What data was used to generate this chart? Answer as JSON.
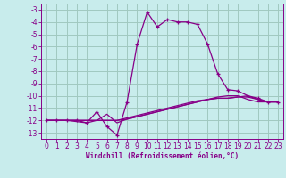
{
  "xlabel": "Windchill (Refroidissement éolien,°C)",
  "background_color": "#c8ecec",
  "grid_color": "#a0c8c0",
  "line_color": "#880088",
  "spine_color": "#880088",
  "xlim": [
    -0.5,
    23.5
  ],
  "ylim": [
    -13.5,
    -2.5
  ],
  "yticks": [
    -13,
    -12,
    -11,
    -10,
    -9,
    -8,
    -7,
    -6,
    -5,
    -4,
    -3
  ],
  "xticks": [
    0,
    1,
    2,
    3,
    4,
    5,
    6,
    7,
    8,
    9,
    10,
    11,
    12,
    13,
    14,
    15,
    16,
    17,
    18,
    19,
    20,
    21,
    22,
    23
  ],
  "series1_x": [
    0,
    1,
    2,
    3,
    4,
    5,
    6,
    7,
    8,
    9,
    10,
    11,
    12,
    13,
    14,
    15,
    16,
    17,
    18,
    19,
    20,
    21,
    22,
    23
  ],
  "series1_y": [
    -12.0,
    -12.0,
    -12.0,
    -12.0,
    -12.2,
    -11.3,
    -12.5,
    -13.2,
    -10.5,
    -5.8,
    -3.2,
    -4.4,
    -3.8,
    -4.0,
    -4.0,
    -4.2,
    -5.8,
    -8.2,
    -9.5,
    -9.6,
    -10.0,
    -10.2,
    -10.5,
    -10.5
  ],
  "series2_x": [
    0,
    1,
    2,
    3,
    4,
    5,
    6,
    7,
    8,
    9,
    10,
    11,
    12,
    13,
    14,
    15,
    16,
    17,
    18,
    19,
    20,
    21,
    22,
    23
  ],
  "series2_y": [
    -12.0,
    -12.0,
    -12.0,
    -12.0,
    -12.0,
    -12.0,
    -12.0,
    -12.0,
    -11.8,
    -11.6,
    -11.4,
    -11.2,
    -11.0,
    -10.8,
    -10.6,
    -10.4,
    -10.3,
    -10.2,
    -10.2,
    -10.1,
    -10.1,
    -10.3,
    -10.5,
    -10.5
  ],
  "series3_x": [
    0,
    1,
    2,
    3,
    4,
    5,
    6,
    7,
    8,
    9,
    10,
    11,
    12,
    13,
    14,
    15,
    16,
    17,
    18,
    19,
    20,
    21,
    22,
    23
  ],
  "series3_y": [
    -12.0,
    -12.0,
    -12.0,
    -12.0,
    -12.0,
    -12.0,
    -12.0,
    -12.0,
    -11.9,
    -11.7,
    -11.5,
    -11.3,
    -11.1,
    -10.9,
    -10.7,
    -10.5,
    -10.3,
    -10.2,
    -10.2,
    -10.1,
    -10.0,
    -10.3,
    -10.5,
    -10.5
  ],
  "series4_x": [
    0,
    1,
    2,
    3,
    4,
    5,
    6,
    7,
    8,
    9,
    10,
    11,
    12,
    13,
    14,
    15,
    16,
    17,
    18,
    19,
    20,
    21,
    22,
    23
  ],
  "series4_y": [
    -12.0,
    -12.0,
    -12.0,
    -12.1,
    -12.2,
    -12.0,
    -11.5,
    -12.2,
    -11.9,
    -11.7,
    -11.5,
    -11.3,
    -11.1,
    -10.9,
    -10.7,
    -10.5,
    -10.3,
    -10.1,
    -10.0,
    -10.0,
    -10.3,
    -10.5,
    -10.5,
    -10.5
  ],
  "tick_fontsize": 5.5,
  "xlabel_fontsize": 5.5
}
